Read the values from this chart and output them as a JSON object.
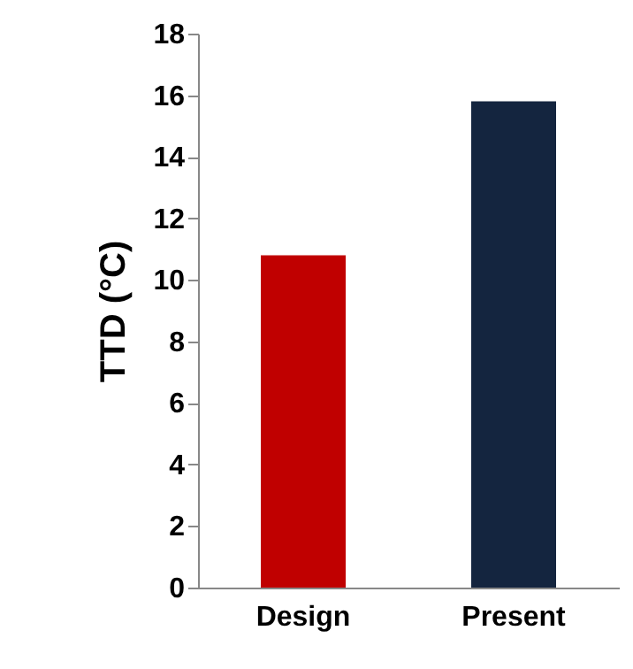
{
  "chart_data": {
    "type": "bar",
    "ylabel": "TTD (°C)",
    "categories": [
      "Design",
      "Present"
    ],
    "values": [
      10.8,
      15.8
    ],
    "colors": [
      "#c00000",
      "#14253f"
    ],
    "ylim": [
      0,
      18
    ],
    "yticks": [
      0,
      2,
      4,
      6,
      8,
      10,
      12,
      14,
      16,
      18
    ],
    "grid": false
  }
}
